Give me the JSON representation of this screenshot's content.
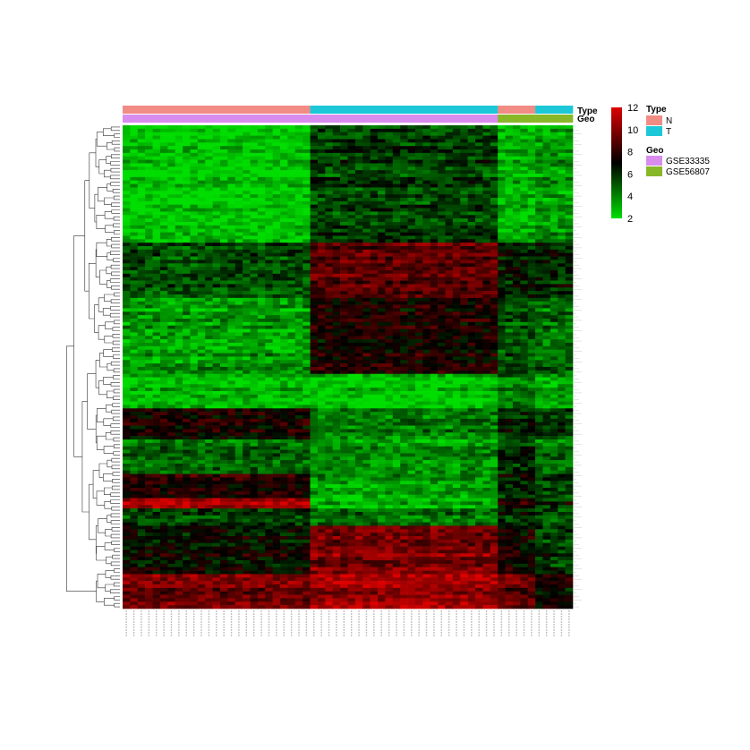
{
  "chart_data": {
    "type": "heatmap",
    "title": "",
    "xlabel": "",
    "ylabel": "",
    "annotations": {
      "type_row_label": "Type",
      "geo_row_label": "Geo"
    },
    "sample_groups": [
      {
        "type": "N",
        "geo": "GSE33335",
        "count": 25
      },
      {
        "type": "T",
        "geo": "GSE33335",
        "count": 25
      },
      {
        "type": "N",
        "geo": "GSE56807",
        "count": 5
      },
      {
        "type": "T",
        "geo": "GSE56807",
        "count": 5
      }
    ],
    "gene_blocks": [
      {
        "rows": 34,
        "values": [
          2.4,
          5.6,
          3.0,
          3.6
        ]
      },
      {
        "rows": 16,
        "values": [
          5.2,
          9.0,
          6.4,
          6.2
        ]
      },
      {
        "rows": 22,
        "values": [
          3.6,
          7.6,
          5.2,
          4.6
        ]
      },
      {
        "rows": 10,
        "values": [
          3.0,
          2.6,
          4.6,
          3.4
        ]
      },
      {
        "rows": 9,
        "values": [
          7.2,
          4.0,
          6.0,
          5.4
        ]
      },
      {
        "rows": 10,
        "values": [
          4.8,
          3.8,
          6.0,
          4.6
        ]
      },
      {
        "rows": 7,
        "values": [
          7.8,
          3.6,
          6.4,
          5.6
        ]
      },
      {
        "rows": 3,
        "values": [
          11.0,
          3.0,
          7.6,
          6.4
        ]
      },
      {
        "rows": 5,
        "values": [
          5.4,
          4.4,
          6.0,
          5.0
        ]
      },
      {
        "rows": 14,
        "values": [
          7.0,
          9.8,
          7.4,
          5.8
        ]
      },
      {
        "rows": 10,
        "values": [
          9.6,
          10.6,
          9.2,
          7.2
        ]
      }
    ],
    "color_scale": {
      "min": 2,
      "max": 12,
      "ticks": [
        12,
        10,
        8,
        6,
        4,
        2
      ],
      "colors": [
        "#00dd00",
        "#000000",
        "#dd0000"
      ]
    },
    "legend": {
      "type_title": "Type",
      "type_items": [
        {
          "label": "N",
          "color": "#f08c84"
        },
        {
          "label": "T",
          "color": "#1cc8d8"
        }
      ],
      "geo_title": "Geo",
      "geo_items": [
        {
          "label": "GSE33335",
          "color": "#d88cee"
        },
        {
          "label": "GSE56807",
          "color": "#88b828"
        }
      ]
    }
  }
}
